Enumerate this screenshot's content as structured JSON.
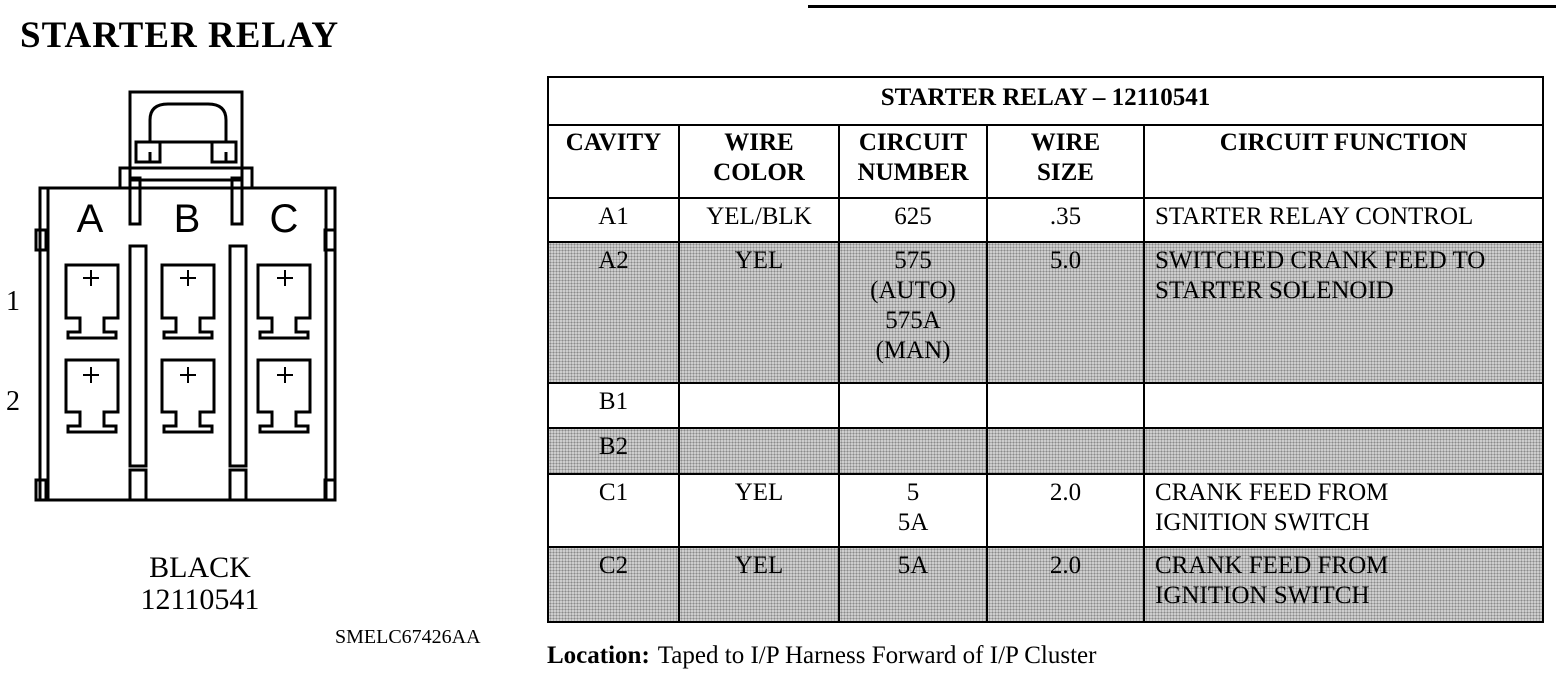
{
  "page_title": "STARTER  RELAY",
  "connector": {
    "columns": [
      "A",
      "B",
      "C"
    ],
    "rows": [
      "1",
      "2"
    ],
    "color": "BLACK",
    "part_number": "12110541"
  },
  "diagram_code": "SMELC67426AA",
  "table": {
    "title": "STARTER RELAY – 12110541",
    "headers": {
      "cavity": "CAVITY",
      "wire_color": [
        "WIRE",
        "COLOR"
      ],
      "circuit_number": [
        "CIRCUIT",
        "NUMBER"
      ],
      "wire_size": [
        "WIRE",
        "SIZE"
      ],
      "circuit_function": "CIRCUIT FUNCTION"
    },
    "rows": [
      {
        "cavity": "A1",
        "wire_color": "YEL/BLK",
        "circuit_number": [
          "625"
        ],
        "wire_size": ".35",
        "function": [
          "STARTER RELAY CONTROL"
        ]
      },
      {
        "cavity": "A2",
        "wire_color": "YEL",
        "circuit_number": [
          "575",
          "(AUTO)",
          "575A",
          "(MAN)"
        ],
        "wire_size": "5.0",
        "function": [
          "SWITCHED CRANK FEED TO",
          "STARTER SOLENOID"
        ]
      },
      {
        "cavity": "B1",
        "wire_color": "",
        "circuit_number": [],
        "wire_size": "",
        "function": []
      },
      {
        "cavity": "B2",
        "wire_color": "",
        "circuit_number": [],
        "wire_size": "",
        "function": []
      },
      {
        "cavity": "C1",
        "wire_color": "YEL",
        "circuit_number": [
          "5",
          "5A"
        ],
        "wire_size": "2.0",
        "function": [
          "CRANK FEED FROM",
          "IGNITION SWITCH"
        ]
      },
      {
        "cavity": "C2",
        "wire_color": "YEL",
        "circuit_number": [
          "5A"
        ],
        "wire_size": "2.0",
        "function": [
          "CRANK FEED FROM",
          "IGNITION SWITCH"
        ]
      }
    ]
  },
  "location": {
    "label": "Location:",
    "text": "Taped to I/P Harness Forward of I/P Cluster"
  }
}
